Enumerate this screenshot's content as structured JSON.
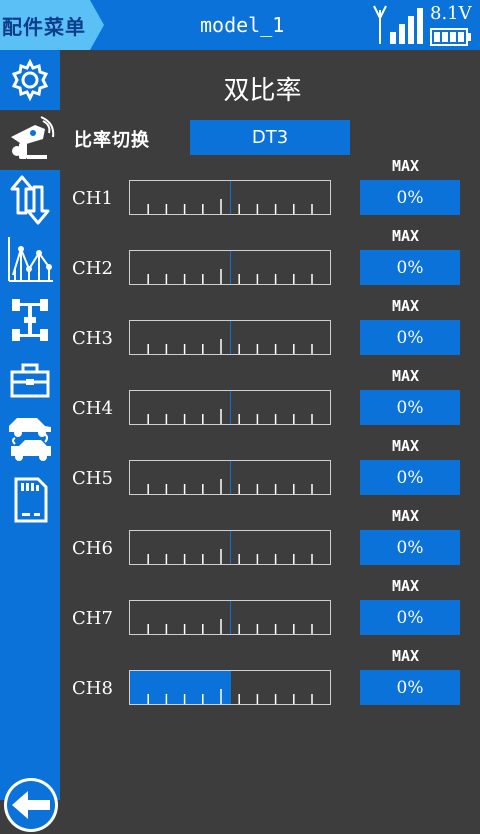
{
  "header": {
    "menu_label": "配件菜单",
    "model_name": "model_1",
    "voltage": "8.1V",
    "signal_bars": 4,
    "battery_level": 1.0
  },
  "sidebar": {
    "items": [
      {
        "name": "gear-icon",
        "active": false
      },
      {
        "name": "transmitter-icon",
        "active": true
      },
      {
        "name": "reverse-arrows-icon",
        "active": false
      },
      {
        "name": "curve-chart-icon",
        "active": false
      },
      {
        "name": "chassis-icon",
        "active": false
      },
      {
        "name": "toolbox-icon",
        "active": false
      },
      {
        "name": "car-swap-icon",
        "active": false
      },
      {
        "name": "sd-card-icon",
        "active": false
      }
    ],
    "back_icon": "back-arrow-icon"
  },
  "page": {
    "title": "双比率",
    "switch_label": "比率切换",
    "switch_value": "DT3"
  },
  "channels": [
    {
      "label": "CH1",
      "mode": "MAX",
      "value": "0%",
      "fill": 0
    },
    {
      "label": "CH2",
      "mode": "MAX",
      "value": "0%",
      "fill": 0
    },
    {
      "label": "CH3",
      "mode": "MAX",
      "value": "0%",
      "fill": 0
    },
    {
      "label": "CH4",
      "mode": "MAX",
      "value": "0%",
      "fill": 0
    },
    {
      "label": "CH5",
      "mode": "MAX",
      "value": "0%",
      "fill": 0
    },
    {
      "label": "CH6",
      "mode": "MAX",
      "value": "0%",
      "fill": 0
    },
    {
      "label": "CH7",
      "mode": "MAX",
      "value": "0%",
      "fill": 0
    },
    {
      "label": "CH8",
      "mode": "MAX",
      "value": "0%",
      "fill": 0.5
    }
  ],
  "colors": {
    "accent": "#0a72d8",
    "background": "#3d3d3d",
    "tab_light": "#5bc0f5"
  }
}
